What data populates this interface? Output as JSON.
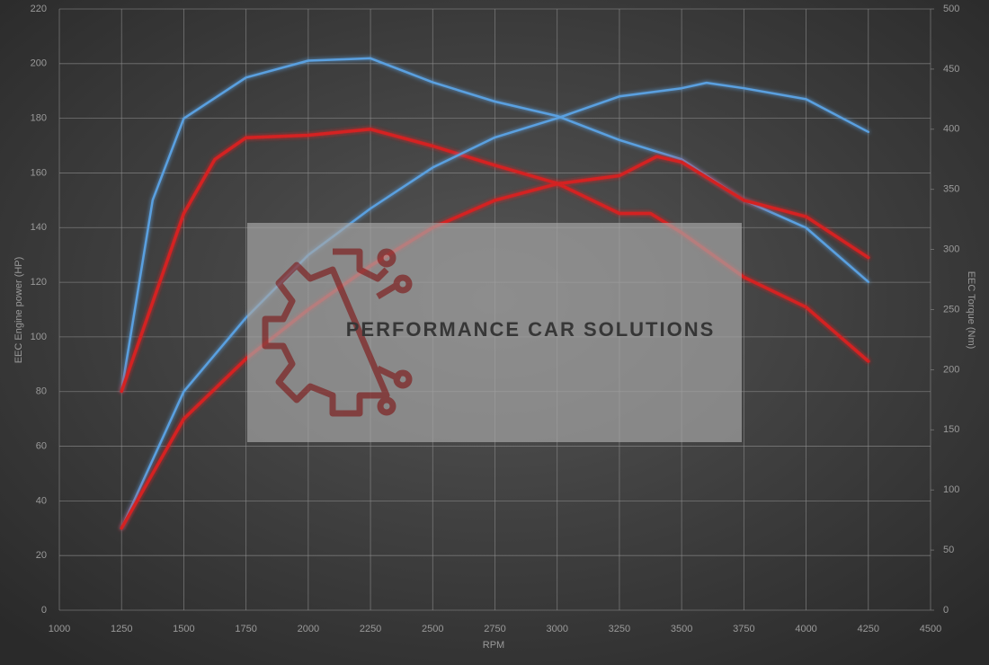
{
  "chart_data": {
    "type": "line",
    "xlabel": "RPM",
    "ylabel": "EEC Engine power (HP)",
    "y2label": "EEC Torque (Nm)",
    "watermark": "PERFORMANCE CAR SOLUTIONS",
    "xlim": [
      1000,
      4500
    ],
    "xticks": [
      1000,
      1250,
      1500,
      1750,
      2000,
      2250,
      2500,
      2750,
      3000,
      3250,
      3500,
      3750,
      4000,
      4250,
      4500
    ],
    "ylim": [
      0,
      220
    ],
    "yticks": [
      0,
      20,
      40,
      60,
      80,
      100,
      120,
      140,
      160,
      180,
      200,
      220
    ],
    "y2lim": [
      0,
      500
    ],
    "y2ticks": [
      0,
      50,
      100,
      150,
      200,
      250,
      300,
      350,
      400,
      450,
      500
    ],
    "grid": true,
    "series": [
      {
        "color": "#5aa0e0",
        "axis": "y2",
        "x": [
          1250,
          1375,
          1500,
          1750,
          2000,
          2250,
          2500,
          2750,
          3000,
          3250,
          3500,
          3750,
          4000,
          4250
        ],
        "values": [
          182,
          341,
          409,
          443,
          457,
          459,
          439,
          423,
          411,
          391,
          375,
          341,
          318,
          273
        ]
      },
      {
        "color": "#d42020",
        "axis": "y2",
        "x": [
          1250,
          1500,
          1625,
          1750,
          2000,
          2250,
          2500,
          2750,
          3000,
          3250,
          3375,
          3500,
          3750,
          4000,
          4250
        ],
        "values": [
          182,
          330,
          375,
          393,
          395,
          400,
          386,
          370,
          355,
          330,
          330,
          314,
          277,
          252,
          207
        ]
      },
      {
        "color": "#5aa0e0",
        "x": [
          1250,
          1500,
          1750,
          2000,
          2250,
          2500,
          2750,
          3000,
          3250,
          3500,
          3600,
          3750,
          4000,
          4250
        ],
        "values": [
          30,
          80,
          107,
          130,
          147,
          162,
          173,
          180,
          188,
          191,
          193,
          191,
          187,
          175
        ]
      },
      {
        "color": "#d42020",
        "x": [
          1250,
          1500,
          1750,
          2000,
          2250,
          2500,
          2750,
          3000,
          3250,
          3400,
          3500,
          3750,
          4000,
          4250
        ],
        "values": [
          30,
          70,
          92,
          110,
          126,
          140,
          150,
          156,
          159,
          166,
          164,
          150,
          144,
          129
        ]
      }
    ]
  }
}
